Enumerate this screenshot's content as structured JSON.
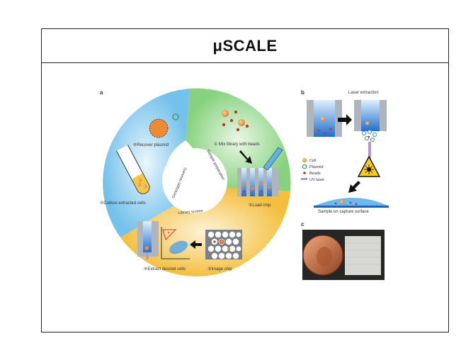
{
  "title": "μSCALE",
  "panel_a": {
    "letter": "a",
    "steps": {
      "s1": "① Mix library with beads",
      "s2": "②Load chip",
      "s3": "③Image chip",
      "s4": "④Extract desired cells",
      "s5": "⑤Culture extracted cells",
      "s6": "⑥Recover plasmid"
    },
    "phases": {
      "sample_prep": "Sample preparation",
      "library_screen": "Library screen",
      "genotype_recovery": "Genotype recovery"
    }
  },
  "panel_b": {
    "letter": "b",
    "laser_extraction": "Laser extraction",
    "legend": [
      "Cell",
      "Plasmid",
      "Beads",
      "UV laser"
    ],
    "capture_caption": "Sample on capture surface"
  },
  "panel_c": {
    "letter": "c"
  },
  "colors": {
    "sample_prep": "#8fd68a",
    "library_screen": "#f6c552",
    "genotype_recovery": "#7fc7ee",
    "cell": "#ee8a35",
    "bead": "#c0392b",
    "plasmid": "#2e9b4f",
    "uv_laser": "#b496d6"
  }
}
